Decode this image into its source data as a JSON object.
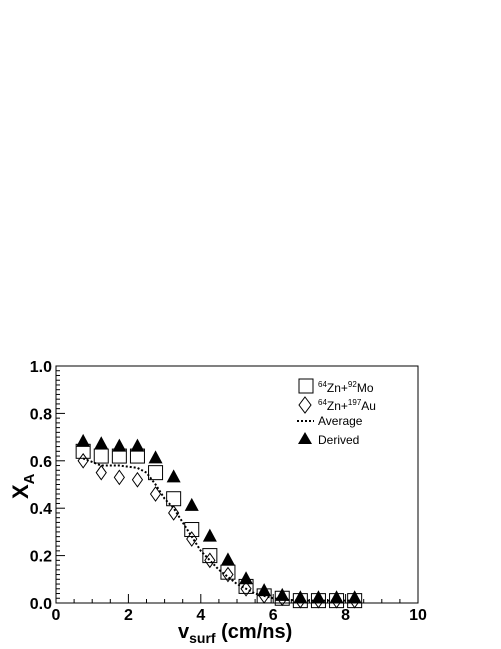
{
  "chart_data": {
    "type": "scatter",
    "xlabel": {
      "main": "v",
      "sub": "surf",
      "tail": " (cm/ns)"
    },
    "ylabel": {
      "main": "X",
      "sub": "A"
    },
    "xlim": [
      0,
      10
    ],
    "ylim": [
      0,
      1.0
    ],
    "x_ticks": [
      0,
      2,
      4,
      6,
      8,
      10
    ],
    "y_ticks": [
      0.0,
      0.2,
      0.4,
      0.6,
      0.8,
      1.0
    ],
    "x_tick_labels": [
      "0",
      "2",
      "4",
      "6",
      "8",
      "10"
    ],
    "y_tick_labels": [
      "0.0",
      "0.2",
      "0.4",
      "0.6",
      "0.8",
      "1.0"
    ],
    "grid": false,
    "legend_position": "top-right",
    "series": [
      {
        "key": "zn_mo",
        "marker": "open-square",
        "legend": {
          "pre1": "64",
          "mid1": "Zn+",
          "pre2": "92",
          "mid2": "Mo"
        },
        "x": [
          0.75,
          1.25,
          1.75,
          2.25,
          2.75,
          3.25,
          3.75,
          4.25,
          4.75,
          5.25,
          5.75,
          6.25,
          6.75,
          7.25,
          7.75,
          8.25
        ],
        "y": [
          0.64,
          0.62,
          0.62,
          0.62,
          0.55,
          0.44,
          0.31,
          0.2,
          0.13,
          0.07,
          0.03,
          0.02,
          0.01,
          0.01,
          0.01,
          0.01
        ]
      },
      {
        "key": "zn_au",
        "marker": "open-diamond",
        "legend": {
          "pre1": "64",
          "mid1": "Zn+",
          "pre2": "197",
          "mid2": "Au"
        },
        "x": [
          0.75,
          1.25,
          1.75,
          2.25,
          2.75,
          3.25,
          3.75,
          4.25,
          4.75,
          5.25,
          5.75,
          6.25,
          6.75,
          7.25,
          7.75,
          8.25
        ],
        "y": [
          0.6,
          0.55,
          0.53,
          0.52,
          0.46,
          0.38,
          0.27,
          0.18,
          0.12,
          0.06,
          0.03,
          0.02,
          0.01,
          0.01,
          0.01,
          0.01
        ]
      },
      {
        "key": "derived",
        "marker": "filled-triangle",
        "legend": {
          "text": "Derived"
        },
        "x": [
          0.75,
          1.25,
          1.75,
          2.25,
          2.75,
          3.25,
          3.75,
          4.25,
          4.75,
          5.25,
          5.75,
          6.25,
          6.75,
          7.25,
          7.75,
          8.25
        ],
        "y": [
          0.68,
          0.67,
          0.66,
          0.66,
          0.61,
          0.53,
          0.41,
          0.28,
          0.18,
          0.1,
          0.05,
          0.03,
          0.02,
          0.02,
          0.02,
          0.02
        ]
      },
      {
        "key": "average",
        "marker": "dotted-line",
        "legend": {
          "text": "Average"
        },
        "x": [
          0.75,
          1.25,
          1.75,
          2.25,
          2.5,
          2.75,
          3.0,
          3.25,
          3.5,
          3.75,
          4.0,
          4.25,
          4.5,
          4.75,
          5.0,
          5.25,
          5.5,
          5.75,
          6.0,
          6.25,
          6.75,
          7.25,
          7.75,
          8.25
        ],
        "y": [
          0.61,
          0.58,
          0.58,
          0.57,
          0.55,
          0.5,
          0.44,
          0.4,
          0.34,
          0.28,
          0.22,
          0.18,
          0.14,
          0.11,
          0.08,
          0.06,
          0.04,
          0.03,
          0.02,
          0.015,
          0.01,
          0.01,
          0.01,
          0.01
        ]
      }
    ]
  }
}
